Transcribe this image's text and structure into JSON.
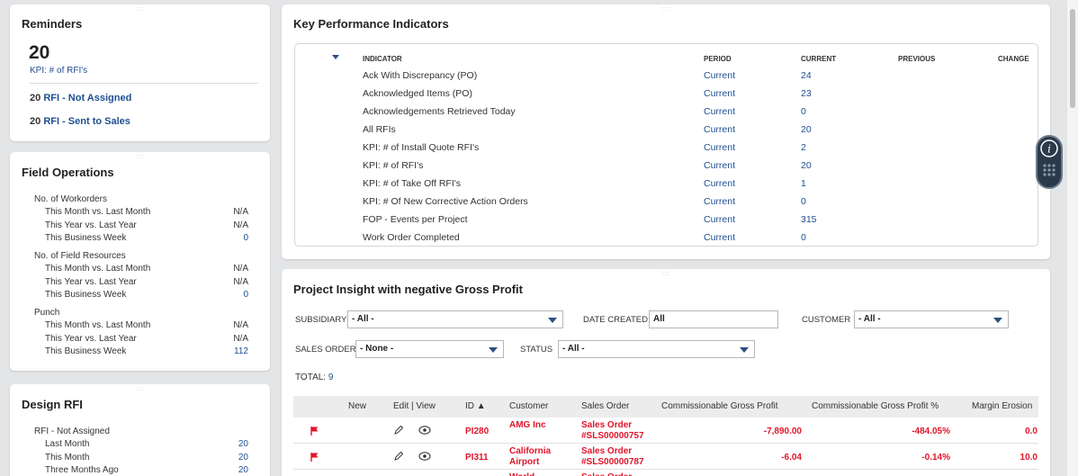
{
  "reminders": {
    "title": "Reminders",
    "big_value": "20",
    "big_label": "KPI: # of RFI's",
    "items": [
      {
        "count": "20",
        "label": "RFI - Not Assigned"
      },
      {
        "count": "20",
        "label": "RFI - Sent to Sales"
      }
    ]
  },
  "field_ops": {
    "title": "Field Operations",
    "groups": [
      {
        "header": "No. of Workorders",
        "rows": [
          {
            "label": "This Month vs. Last Month",
            "value": "N/A"
          },
          {
            "label": "This Year vs. Last Year",
            "value": "N/A"
          },
          {
            "label": "This Business Week",
            "value": "0"
          }
        ]
      },
      {
        "header": "No. of Field Resources",
        "rows": [
          {
            "label": "This Month vs. Last Month",
            "value": "N/A"
          },
          {
            "label": "This Year vs. Last Year",
            "value": "N/A"
          },
          {
            "label": "This Business Week",
            "value": "0"
          }
        ]
      },
      {
        "header": "Punch",
        "rows": [
          {
            "label": "This Month vs. Last Month",
            "value": "N/A"
          },
          {
            "label": "This Year vs. Last Year",
            "value": "N/A"
          },
          {
            "label": "This Business Week",
            "value": "112"
          }
        ]
      }
    ]
  },
  "design_rfi": {
    "title": "Design RFI",
    "group_header": "RFI - Not Assigned",
    "rows": [
      {
        "label": "Last Month",
        "value": "20"
      },
      {
        "label": "This Month",
        "value": "20"
      },
      {
        "label": "Three Months Ago",
        "value": "20"
      }
    ]
  },
  "kpi": {
    "title": "Key Performance Indicators",
    "headers": {
      "indicator": "INDICATOR",
      "period": "PERIOD",
      "current": "CURRENT",
      "previous": "PREVIOUS",
      "change": "CHANGE"
    },
    "rows": [
      {
        "indicator": "Ack With Discrepancy (PO)",
        "period": "Current",
        "current": "24"
      },
      {
        "indicator": "Acknowledged Items (PO)",
        "period": "Current",
        "current": "23"
      },
      {
        "indicator": "Acknowledgements Retrieved Today",
        "period": "Current",
        "current": "0"
      },
      {
        "indicator": "All RFIs",
        "period": "Current",
        "current": "20"
      },
      {
        "indicator": "KPI: # of Install Quote RFI's",
        "period": "Current",
        "current": "2"
      },
      {
        "indicator": "KPI: # of RFI's",
        "period": "Current",
        "current": "20"
      },
      {
        "indicator": "KPI: # of Take Off RFI's",
        "period": "Current",
        "current": "1"
      },
      {
        "indicator": "KPI: # Of New Corrective Action Orders",
        "period": "Current",
        "current": "0"
      },
      {
        "indicator": "FOP - Events per Project",
        "period": "Current",
        "current": "315"
      },
      {
        "indicator": "Work Order Completed",
        "period": "Current",
        "current": "0"
      }
    ]
  },
  "project_insight": {
    "title": "Project Insight with negative Gross Profit",
    "filters": {
      "subsidiary_label": "SUBSIDIARY",
      "subsidiary_value": "- All -",
      "date_label": "DATE CREATED",
      "date_value": "All",
      "customer_label": "CUSTOMER",
      "customer_value": "- All -",
      "sales_order_label": "SALES ORDER",
      "sales_order_value": "- None -",
      "status_label": "STATUS",
      "status_value": "- All -"
    },
    "total_label": "TOTAL:",
    "total_value": "9",
    "columns": {
      "new": "New",
      "edit_view": "Edit | View",
      "id": "ID ▲",
      "customer": "Customer",
      "sales_order": "Sales Order",
      "cgp": "Commissionable Gross Profit",
      "cgp_pct": "Commissionable Gross Profit %",
      "margin": "Margin Erosion"
    },
    "rows": [
      {
        "id": "PI280",
        "customer_1": "AMG Inc",
        "customer_2": "",
        "so_1": "Sales Order",
        "so_2": "#SLS00000757",
        "cgp": "-7,890.00",
        "cgp_pct": "-484.05%",
        "margin": "0.0"
      },
      {
        "id": "PI311",
        "customer_1": "California",
        "customer_2": "Airport",
        "so_1": "Sales Order",
        "so_2": "#SLS00000787",
        "cgp": "-6.04",
        "cgp_pct": "-0.14%",
        "margin": "10.0"
      },
      {
        "id": "",
        "customer_1": "World",
        "customer_2": "",
        "so_1": "Sales Order",
        "so_2": "",
        "cgp": "",
        "cgp_pct": "",
        "margin": ""
      }
    ]
  },
  "colors": {
    "link": "#1f4f91",
    "negative": "#e0152a",
    "bg": "#e4e5e7"
  }
}
